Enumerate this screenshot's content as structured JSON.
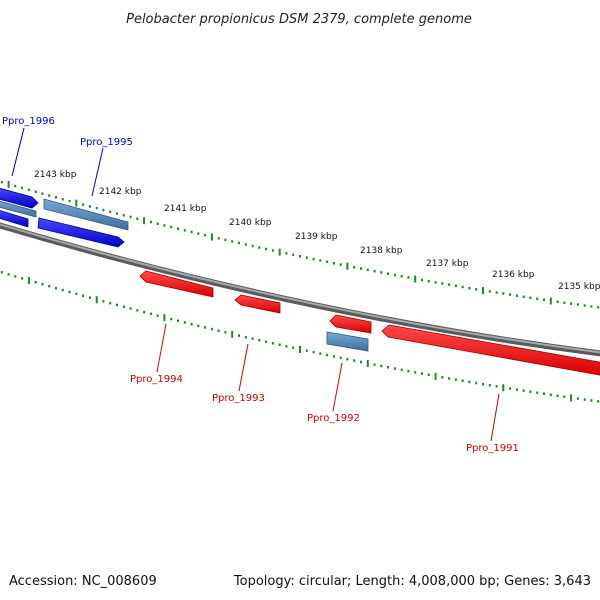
{
  "title": "Pelobacter propionicus DSM 2379, complete genome",
  "footer": {
    "accession": "Accession: NC_008609",
    "summary": "Topology: circular; Length: 4,008,000 bp; Genes: 3,643"
  },
  "colors": {
    "backbone": "#808080",
    "tick": "#1f8a1f",
    "forward_gene": "#0000ee",
    "reverse_gene": "#ff0000",
    "other_gene": "#4682b4",
    "forward_label": "#0000cc",
    "reverse_label": "#cc0000"
  },
  "ruler": {
    "unit": "kbp",
    "labels": [
      "2143 kbp",
      "2142 kbp",
      "2141 kbp",
      "2140 kbp",
      "2139 kbp",
      "2138 kbp",
      "2137 kbp",
      "2136 kbp",
      "2135 kbp"
    ]
  },
  "genes": [
    {
      "label": "Ppro_1996",
      "strand": "forward"
    },
    {
      "label": "Ppro_1995",
      "strand": "forward"
    },
    {
      "label": "Ppro_1994",
      "strand": "reverse"
    },
    {
      "label": "Ppro_1993",
      "strand": "reverse"
    },
    {
      "label": "Ppro_1992",
      "strand": "reverse"
    },
    {
      "label": "Ppro_1991",
      "strand": "reverse"
    }
  ]
}
